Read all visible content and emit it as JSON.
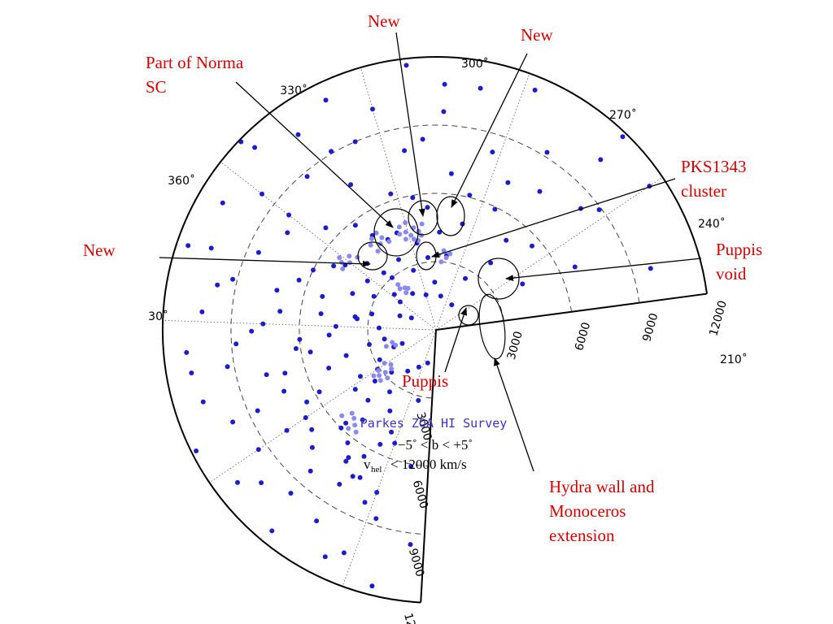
{
  "chart_data": {
    "type": "scatter",
    "title": "Parkes ZOA HI Survey",
    "subtitle_lines": [
      "−5˚ <  b < +5˚",
      "< 12000 km/s"
    ],
    "velocity_symbol": "v",
    "velocity_subscript": "hel",
    "radial_axis": {
      "quantity": "heliocentric velocity",
      "unit": "km/s",
      "range": [
        0,
        12000
      ],
      "ticks": [
        3000,
        6000,
        9000,
        12000
      ],
      "tick_labels": [
        "3000",
        "6000",
        "9000",
        "12000"
      ]
    },
    "angular_axis": {
      "quantity": "Galactic longitude",
      "range_deg": [
        196,
        52
      ],
      "ticks_deg": [
        30,
        360,
        330,
        300,
        270,
        240,
        210
      ],
      "tick_labels": [
        "30˚",
        "360˚",
        "330˚",
        "300˚",
        "270˚",
        "240˚",
        "210˚"
      ]
    },
    "grid": true,
    "series": [
      {
        "color": "#1c1ccc",
        "role": "galaxies",
        "points": [
          [
            45,
            9800
          ],
          [
            38,
            6700
          ],
          [
            35,
            4300
          ],
          [
            30,
            11300
          ],
          [
            28,
            8900
          ],
          [
            24,
            5600
          ],
          [
            20,
            10400
          ],
          [
            16,
            3800
          ],
          [
            14,
            7600
          ],
          [
            10,
            9200
          ],
          [
            8,
            2600
          ],
          [
            5,
            5900
          ],
          [
            2,
            11400
          ],
          [
            358,
            8200
          ],
          [
            355,
            4800
          ],
          [
            352,
            10800
          ],
          [
            350,
            3300
          ],
          [
            348,
            6900
          ],
          [
            345,
            9600
          ],
          [
            342,
            2100
          ],
          [
            340,
            5400
          ],
          [
            338,
            11700
          ],
          [
            335,
            8000
          ],
          [
            333,
            3900
          ],
          [
            330,
            10100
          ],
          [
            328,
            6300
          ],
          [
            326,
            2800
          ],
          [
            324,
            9000
          ],
          [
            322,
            11200
          ],
          [
            320,
            4500
          ],
          [
            318,
            7400
          ],
          [
            316,
            1900
          ],
          [
            314,
            10500
          ],
          [
            312,
            5800
          ],
          [
            310,
            8800
          ],
          [
            308,
            3400
          ],
          [
            306,
            11300
          ],
          [
            304,
            6600
          ],
          [
            302,
            2400
          ],
          [
            300,
            9700
          ],
          [
            298,
            4900
          ],
          [
            296,
            7800
          ],
          [
            294,
            10900
          ],
          [
            292,
            3100
          ],
          [
            290,
            6000
          ],
          [
            288,
            8500
          ],
          [
            286,
            1700
          ],
          [
            284,
            11500
          ],
          [
            282,
            5200
          ],
          [
            280,
            7200
          ],
          [
            278,
            9800
          ],
          [
            276,
            3600
          ],
          [
            274,
            6900
          ],
          [
            272,
            10300
          ],
          [
            270,
            2500
          ],
          [
            268,
            8100
          ],
          [
            266,
            4700
          ],
          [
            264,
            11000
          ],
          [
            262,
            6200
          ],
          [
            260,
            9300
          ],
          [
            258,
            3000
          ],
          [
            256,
            7700
          ],
          [
            254,
            10700
          ],
          [
            252,
            5000
          ],
          [
            250,
            2000
          ],
          [
            248,
            8600
          ],
          [
            246,
            11800
          ],
          [
            244,
            6500
          ],
          [
            242,
            3900
          ],
          [
            240,
            9400
          ],
          [
            238,
            4400
          ],
          [
            236,
            7000
          ],
          [
            234,
            10200
          ],
          [
            232,
            2700
          ],
          [
            230,
            5700
          ],
          [
            228,
            8300
          ],
          [
            226,
            11400
          ],
          [
            224,
            3400
          ],
          [
            222,
            6800
          ],
          [
            220,
            9900
          ],
          [
            218,
            4100
          ],
          [
            216,
            7300
          ],
          [
            214,
            1800
          ],
          [
            212,
            10600
          ],
          [
            210,
            5300
          ],
          [
            208,
            8700
          ],
          [
            205,
            3200
          ],
          [
            202,
            6100
          ],
          [
            199,
            9500
          ],
          [
            232,
            7500
          ],
          [
            225,
            6300
          ],
          [
            220,
            8000
          ],
          [
            245,
            5800
          ],
          [
            250,
            7200
          ],
          [
            260,
            5600
          ],
          [
            265,
            8800
          ],
          [
            275,
            5100
          ],
          [
            285,
            6400
          ],
          [
            295,
            5300
          ],
          [
            305,
            4200
          ],
          [
            315,
            5000
          ],
          [
            325,
            4600
          ],
          [
            335,
            5900
          ],
          [
            345,
            4300
          ],
          [
            355,
            6100
          ],
          [
            5,
            7200
          ],
          [
            15,
            5000
          ],
          [
            25,
            8300
          ],
          [
            255,
            4100
          ],
          [
            270,
            4400
          ],
          [
            240,
            6900
          ],
          [
            230,
            4300
          ],
          [
            215,
            5600
          ],
          [
            210,
            7600
          ],
          [
            288,
            4000
          ],
          [
            298,
            3700
          ],
          [
            310,
            3000
          ],
          [
            320,
            3500
          ],
          [
            338,
            3200
          ],
          [
            300,
            2000
          ],
          [
            280,
            2900
          ],
          [
            260,
            2300
          ],
          [
            245,
            2800
          ],
          [
            235,
            3500
          ],
          [
            350,
            1500
          ],
          [
            330,
            1600
          ],
          [
            10,
            1300
          ],
          [
            290,
            1200
          ],
          [
            250,
            1600
          ],
          [
            222,
            2200
          ],
          [
            205,
            1500
          ],
          [
            270,
            7600
          ],
          [
            280,
            9200
          ],
          [
            300,
            8200
          ],
          [
            318,
            9100
          ],
          [
            340,
            8400
          ],
          [
            260,
            10900
          ],
          [
            237,
            11000
          ],
          [
            215,
            11100
          ],
          [
            205,
            11600
          ],
          [
            20,
            11800
          ],
          [
            305,
            11900
          ],
          [
            285,
            10500
          ],
          [
            345,
            10800
          ],
          [
            228,
            9600
          ],
          [
            248,
            9800
          ],
          [
            218,
            6400
          ],
          [
            213,
            4900
          ],
          [
            226,
            5100
          ],
          [
            240,
            3100
          ],
          [
            255,
            6900
          ],
          [
            265,
            6000
          ],
          [
            275,
            3500
          ],
          [
            230,
            6000
          ],
          [
            222,
            7000
          ],
          [
            218,
            7400
          ],
          [
            212,
            8200
          ],
          [
            240,
            7900
          ]
        ]
      },
      {
        "color": "#8a8aee",
        "role": "highlighted groups",
        "points": [
          [
            335,
            4400
          ],
          [
            333,
            4600
          ],
          [
            331,
            4300
          ],
          [
            329,
            4500
          ],
          [
            327,
            4800
          ],
          [
            337,
            4700
          ],
          [
            332,
            4100
          ],
          [
            328,
            4200
          ],
          [
            326,
            4500
          ],
          [
            336,
            4200
          ],
          [
            330,
            4900
          ],
          [
            334,
            4000
          ],
          [
            318,
            4700
          ],
          [
            316,
            4500
          ],
          [
            314,
            4900
          ],
          [
            312,
            4700
          ],
          [
            320,
            4400
          ],
          [
            317,
            5000
          ],
          [
            313,
            4300
          ],
          [
            302,
            5000
          ],
          [
            300,
            4800
          ],
          [
            298,
            5100
          ],
          [
            296,
            4900
          ],
          [
            304,
            4700
          ],
          [
            299,
            5300
          ],
          [
            350,
            3200
          ],
          [
            347,
            3000
          ],
          [
            345,
            3300
          ],
          [
            352,
            3400
          ],
          [
            348,
            3500
          ],
          [
            313,
            2300
          ],
          [
            311,
            2100
          ],
          [
            309,
            2400
          ],
          [
            315,
            2200
          ],
          [
            310,
            2600
          ],
          [
            229,
            5300
          ],
          [
            227,
            5500
          ],
          [
            225,
            5700
          ],
          [
            231,
            5200
          ],
          [
            228,
            5800
          ],
          [
            233,
            5600
          ],
          [
            255,
            2000
          ],
          [
            253,
            2300
          ],
          [
            251,
            1900
          ],
          [
            241,
            2700
          ],
          [
            239,
            3100
          ],
          [
            237,
            2500
          ],
          [
            235,
            2900
          ],
          [
            233,
            3300
          ],
          [
            231,
            3000
          ],
          [
            238,
            3400
          ],
          [
            234,
            2600
          ],
          [
            236,
            3200
          ]
        ]
      }
    ],
    "annotations": [
      {
        "text_lines": [
          "Part of Norma",
          "SC"
        ]
      },
      {
        "text_lines": [
          "New"
        ]
      },
      {
        "text_lines": [
          "New"
        ]
      },
      {
        "text_lines": [
          "PKS1343",
          "cluster"
        ]
      },
      {
        "text_lines": [
          "New"
        ]
      },
      {
        "text_lines": [
          "Puppis",
          "void"
        ]
      },
      {
        "text_lines": [
          "Puppis"
        ]
      },
      {
        "text_lines": [
          "Hydra wall and",
          "Monoceros",
          "extension"
        ]
      }
    ],
    "annotation_color": "#d40000"
  }
}
